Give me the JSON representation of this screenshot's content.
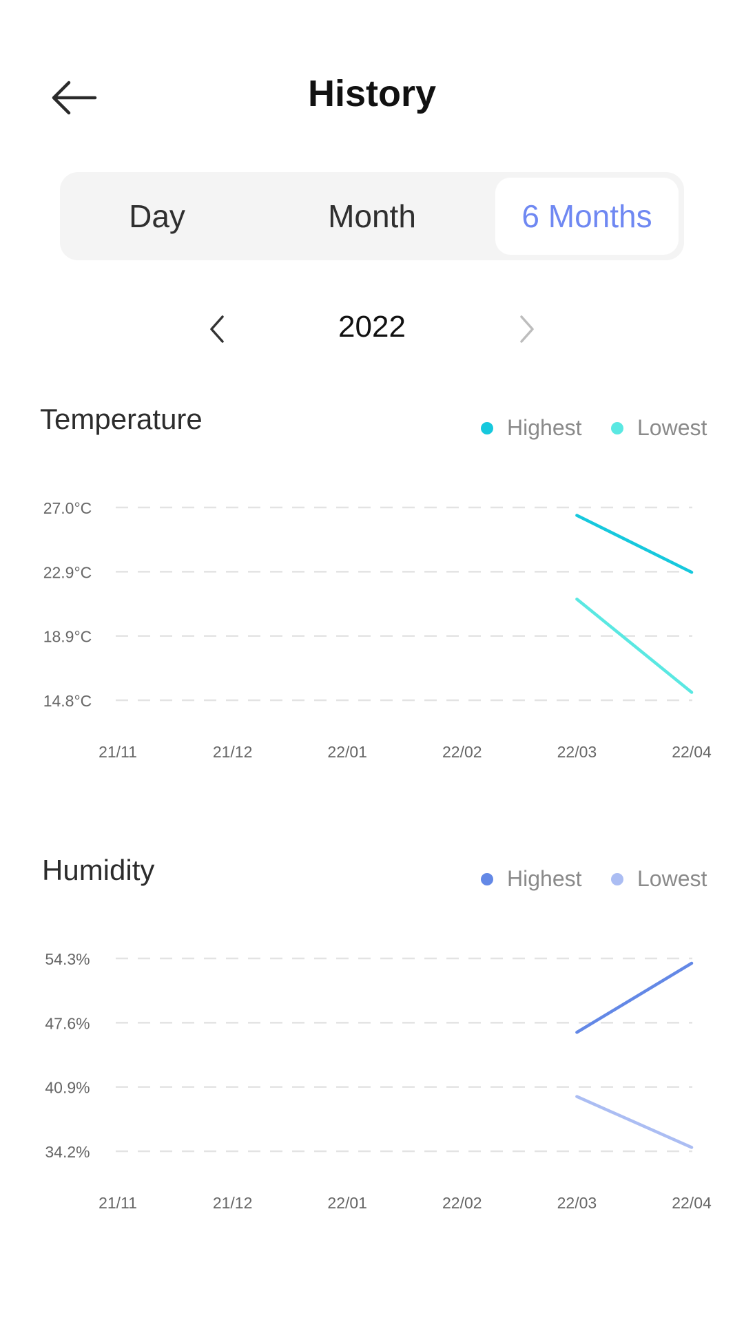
{
  "header": {
    "title": "History",
    "back_icon": "arrow-left-icon"
  },
  "range_tabs": [
    {
      "label": "Day",
      "active": false
    },
    {
      "label": "Month",
      "active": false
    },
    {
      "label": "6 Months",
      "active": true
    }
  ],
  "year_nav": {
    "year": "2022",
    "prev_icon": "chevron-left-icon",
    "next_icon": "chevron-right-icon",
    "next_enabled": false
  },
  "colors": {
    "accent": "#6f88f2",
    "temp_highest": "#16c8dd",
    "temp_lowest": "#5ae8e2",
    "hum_highest": "#6388e6",
    "hum_lowest": "#abbdf3",
    "grid": "#e3e3e3"
  },
  "temperature": {
    "title": "Temperature",
    "legend": [
      "Highest",
      "Lowest"
    ],
    "chart_data": {
      "type": "line",
      "categories": [
        "21/11",
        "21/12",
        "22/01",
        "22/02",
        "22/03",
        "22/04"
      ],
      "y_ticks": [
        "27.0°C",
        "22.9°C",
        "18.9°C",
        "14.8°C"
      ],
      "ylim": [
        14.8,
        27.0
      ],
      "grid": true,
      "series": [
        {
          "name": "Highest",
          "values": [
            null,
            null,
            null,
            null,
            26.5,
            22.9
          ]
        },
        {
          "name": "Lowest",
          "values": [
            null,
            null,
            null,
            null,
            21.2,
            15.3
          ]
        }
      ]
    }
  },
  "humidity": {
    "title": "Humidity",
    "legend": [
      "Highest",
      "Lowest"
    ],
    "chart_data": {
      "type": "line",
      "categories": [
        "21/11",
        "21/12",
        "22/01",
        "22/02",
        "22/03",
        "22/04"
      ],
      "y_ticks": [
        "54.3%",
        "47.6%",
        "40.9%",
        "34.2%"
      ],
      "ylim": [
        34.2,
        54.3
      ],
      "grid": true,
      "series": [
        {
          "name": "Highest",
          "values": [
            null,
            null,
            null,
            null,
            46.6,
            53.8
          ]
        },
        {
          "name": "Lowest",
          "values": [
            null,
            null,
            null,
            null,
            39.9,
            34.6
          ]
        }
      ]
    }
  }
}
